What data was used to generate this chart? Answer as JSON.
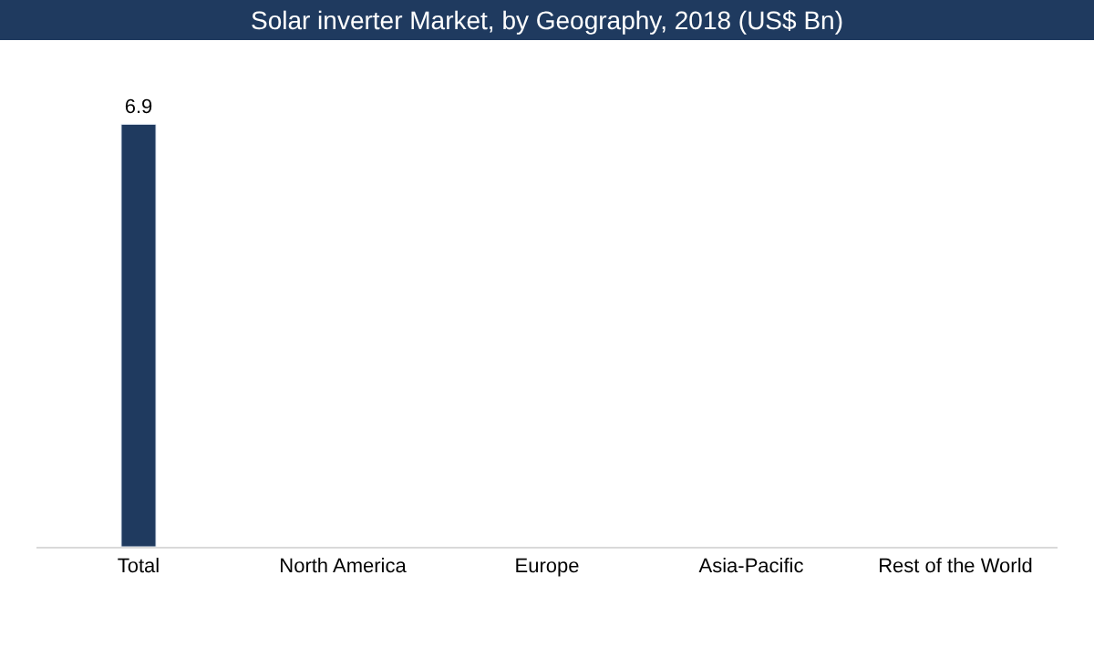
{
  "chart_data": {
    "type": "bar",
    "title": "Solar inverter Market, by Geography, 2018 (US$ Bn)",
    "categories": [
      "Total",
      "North America",
      "Europe",
      "Asia-Pacific",
      "Rest of the World"
    ],
    "values": [
      6.9,
      null,
      null,
      null,
      null
    ],
    "color": "#1f3a5f",
    "data_labels": true
  }
}
